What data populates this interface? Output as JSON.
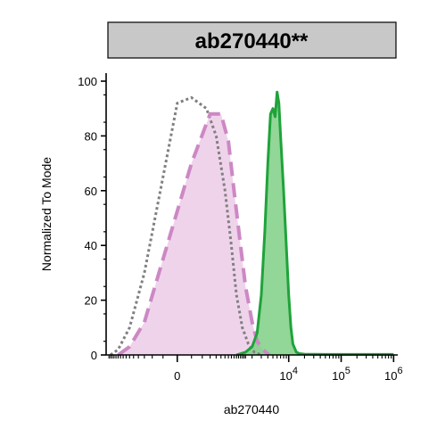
{
  "chart_data": {
    "type": "area",
    "title": "ab270440**",
    "xlabel": "ab270440",
    "ylabel": "Normalized To Mode",
    "x_scale": "biexponential",
    "ylim": [
      0,
      100
    ],
    "y_ticks": [
      "0",
      "20",
      "40",
      "60",
      "80",
      "100"
    ],
    "x_tick_labels": [
      {
        "base": "0",
        "exp": ""
      },
      {
        "base": "10",
        "exp": "4"
      },
      {
        "base": "10",
        "exp": "5"
      },
      {
        "base": "10",
        "exp": "6"
      }
    ],
    "series": [
      {
        "style": "dotted",
        "color": "#808080",
        "fill": "none",
        "x": [
          -1400,
          -1000,
          -600,
          -300,
          -100,
          0,
          100,
          250,
          400,
          600,
          800,
          1000,
          1300,
          1700,
          2200,
          3000
        ],
        "y": [
          0,
          2,
          10,
          30,
          65,
          92,
          94,
          90,
          80,
          60,
          40,
          22,
          10,
          4,
          1,
          0
        ]
      },
      {
        "style": "dashed",
        "color": "#cc88c4",
        "fill": "#ebc8e6",
        "x": [
          -1000,
          -600,
          -300,
          -100,
          100,
          300,
          500,
          700,
          900,
          1200,
          1500,
          2000,
          2500,
          3200,
          4200
        ],
        "y": [
          0,
          3,
          12,
          35,
          70,
          88,
          88,
          78,
          60,
          40,
          25,
          12,
          5,
          2,
          0
        ]
      },
      {
        "style": "solid",
        "color": "#1fa33a",
        "fill": "#7fcf86",
        "x": [
          1000,
          1500,
          2000,
          2500,
          3000,
          3500,
          4000,
          4500,
          5000,
          5500,
          6000,
          6500,
          7000,
          8000,
          9000,
          10000,
          11000,
          12000,
          14000,
          16000,
          20000,
          50000,
          200000,
          1000000
        ],
        "y": [
          0,
          1,
          3,
          8,
          22,
          45,
          70,
          88,
          90,
          87,
          96,
          92,
          80,
          60,
          40,
          22,
          10,
          4,
          1,
          0.5,
          0.3,
          0.2,
          0.2,
          0.2
        ]
      }
    ]
  }
}
